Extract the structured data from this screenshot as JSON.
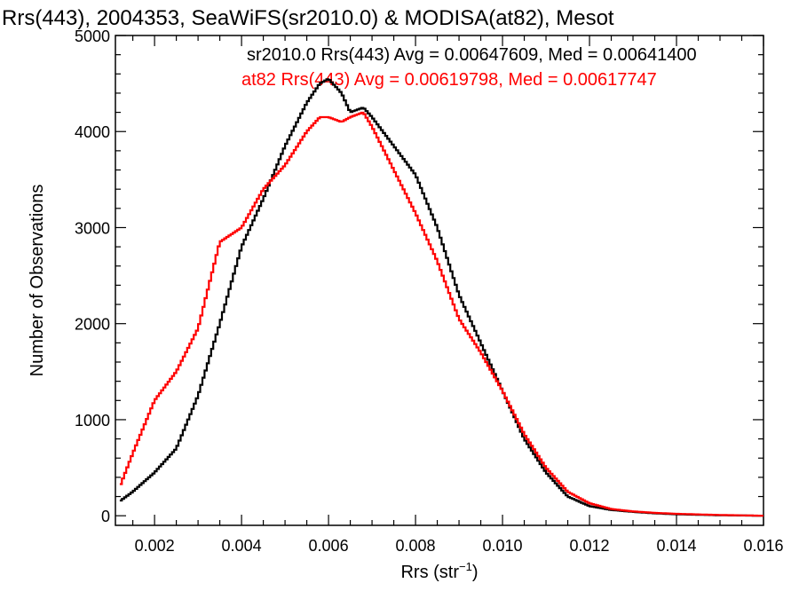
{
  "chart_data": {
    "type": "line",
    "title": "Rrs(443), 2004353, SeaWiFS(sr2010.0) & MODISA(at82), Mesot",
    "xlabel": "Rrs (str",
    "xlabel_sup": "−1",
    "xlabel_close": ")",
    "ylabel": "Number of Observations",
    "xlim": [
      0.0011,
      0.016
    ],
    "ylim": [
      -100,
      5000
    ],
    "x_ticks": [
      0.002,
      0.004,
      0.006,
      0.008,
      0.01,
      0.012,
      0.014,
      0.016
    ],
    "x_tick_labels": [
      "0.002",
      "0.004",
      "0.006",
      "0.008",
      "0.010",
      "0.012",
      "0.014",
      "0.016"
    ],
    "y_ticks": [
      0,
      1000,
      2000,
      3000,
      4000,
      5000
    ],
    "y_tick_labels": [
      "0",
      "1000",
      "2000",
      "3000",
      "4000",
      "5000"
    ],
    "grid": false,
    "legend_placement": "top-right",
    "series": [
      {
        "name": "sr2010.0 Rrs(443) Avg = 0.00647609, Med = 0.00641400",
        "color": "#000000",
        "x": [
          0.0012,
          0.0015,
          0.002,
          0.0025,
          0.003,
          0.0035,
          0.004,
          0.0045,
          0.005,
          0.0055,
          0.0058,
          0.006,
          0.0063,
          0.0065,
          0.0068,
          0.007,
          0.0075,
          0.008,
          0.0085,
          0.009,
          0.0095,
          0.01,
          0.0105,
          0.011,
          0.0115,
          0.012,
          0.0125,
          0.013,
          0.0135,
          0.014,
          0.015,
          0.016
        ],
        "y": [
          150,
          250,
          450,
          700,
          1250,
          2000,
          2800,
          3300,
          3850,
          4300,
          4500,
          4550,
          4400,
          4200,
          4250,
          4150,
          3850,
          3550,
          3000,
          2300,
          1800,
          1300,
          800,
          450,
          200,
          100,
          60,
          40,
          25,
          15,
          5,
          0
        ]
      },
      {
        "name": "at82 Rrs(443) Avg = 0.00619798, Med = 0.00617747",
        "color": "#ff0000",
        "x": [
          0.0012,
          0.0015,
          0.002,
          0.0025,
          0.003,
          0.0035,
          0.004,
          0.0045,
          0.005,
          0.0055,
          0.0058,
          0.006,
          0.0063,
          0.0065,
          0.0068,
          0.007,
          0.0075,
          0.008,
          0.0085,
          0.009,
          0.0095,
          0.01,
          0.0105,
          0.011,
          0.0115,
          0.012,
          0.0125,
          0.013,
          0.0135,
          0.014,
          0.015,
          0.016
        ],
        "y": [
          300,
          650,
          1200,
          1500,
          1950,
          2850,
          3000,
          3400,
          3650,
          4000,
          4150,
          4150,
          4100,
          4150,
          4200,
          4050,
          3600,
          3150,
          2650,
          2050,
          1700,
          1300,
          850,
          500,
          250,
          130,
          70,
          45,
          30,
          20,
          8,
          0
        ]
      }
    ]
  }
}
